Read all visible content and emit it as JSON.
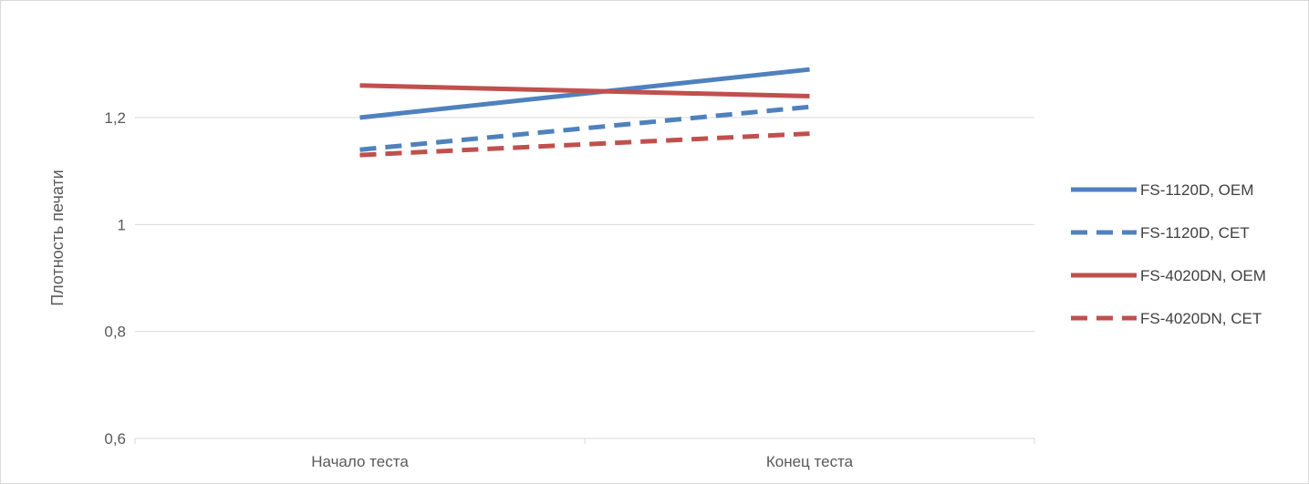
{
  "chart_data": {
    "type": "line",
    "title": "",
    "xlabel": "",
    "ylabel": "Плотность печати",
    "categories": [
      "Начало теста",
      "Конец теста"
    ],
    "ylim": [
      0.6,
      1.35
    ],
    "yticks": [
      0.6,
      0.8,
      1.0,
      1.2
    ],
    "ytick_labels": [
      "0,6",
      "0,8",
      "1",
      "1,2"
    ],
    "grid": true,
    "legend_position": "right",
    "series": [
      {
        "name": "FS-1120D, OEM",
        "values": [
          1.2,
          1.29
        ],
        "color": "#4f81bd",
        "dash": "solid"
      },
      {
        "name": "FS-1120D, CET",
        "values": [
          1.14,
          1.22
        ],
        "color": "#4f81bd",
        "dash": "dashed"
      },
      {
        "name": "FS-4020DN, OEM",
        "values": [
          1.26,
          1.24
        ],
        "color": "#c0504d",
        "dash": "solid"
      },
      {
        "name": "FS-4020DN, CET",
        "values": [
          1.13,
          1.17
        ],
        "color": "#c0504d",
        "dash": "dashed"
      }
    ]
  }
}
